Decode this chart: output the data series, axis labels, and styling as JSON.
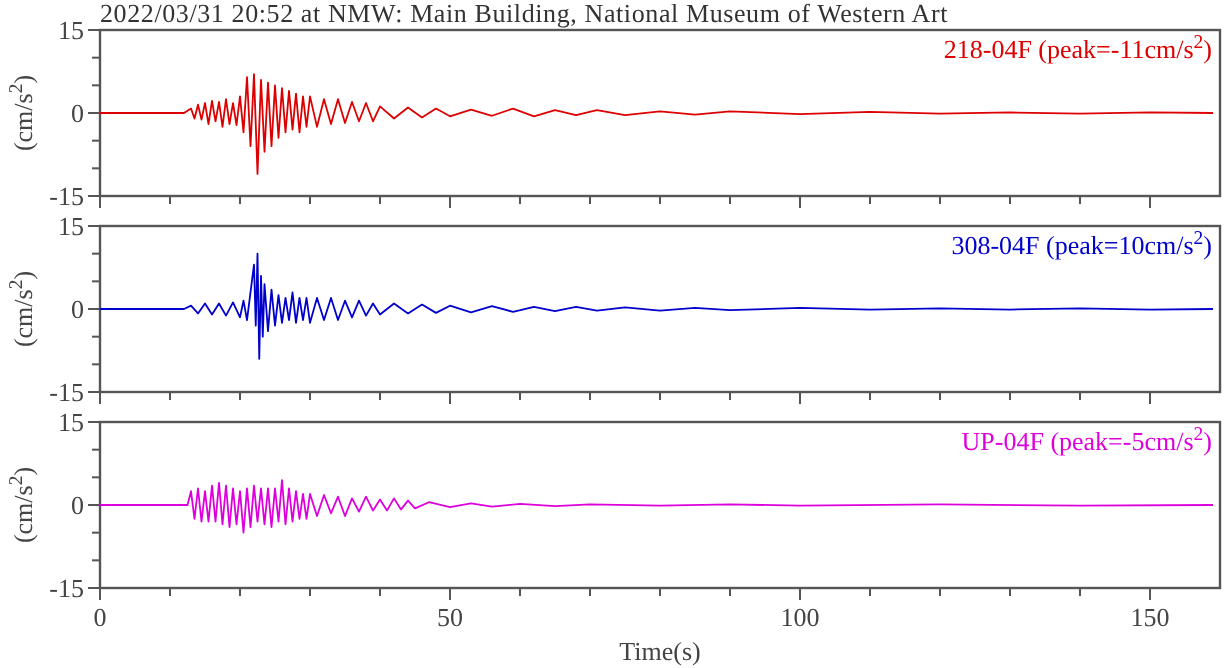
{
  "chart_data": [
    {
      "type": "line",
      "title": "2022/03/31 20:52 at NMW: Main Building, National Museum of Western Art",
      "ylabel": "(cm/s$^{2}$)",
      "tick_labels": "y",
      "legend": "top right",
      "xlim": [
        0,
        160
      ],
      "xticks": [
        0,
        {
          "value": 10,
          "label": null
        },
        {
          "value": 20,
          "label": null
        },
        {
          "value": 30,
          "label": null
        },
        {
          "value": 40,
          "label": null
        },
        50,
        {
          "value": 60,
          "label": null
        },
        {
          "value": 70,
          "label": null
        },
        {
          "value": 80,
          "label": null
        },
        {
          "value": 90,
          "label": null
        },
        100,
        {
          "value": 110,
          "label": null
        },
        {
          "value": 120,
          "label": null
        },
        {
          "value": 130,
          "label": null
        },
        {
          "value": 140,
          "label": null
        },
        150
      ],
      "ylim": [
        -15,
        15
      ],
      "yticks": [
        -15,
        {
          "value": -10,
          "label": null
        },
        {
          "value": -5,
          "label": null
        },
        0,
        {
          "value": 5,
          "label": null
        },
        {
          "value": 10,
          "label": null
        },
        15
      ],
      "series": [
        {
          "name": "218-04F (peak=-11cm/s$^{2}$)",
          "color": "#dd0000",
          "x": [
            0,
            12,
            13,
            13.5,
            14,
            14.5,
            15,
            15.5,
            16,
            16.5,
            17,
            17.5,
            18,
            18.5,
            19,
            19.5,
            20,
            20.5,
            21,
            21.5,
            22,
            22.5,
            23,
            23.5,
            24,
            24.5,
            25,
            25.5,
            26,
            26.5,
            27,
            27.5,
            28,
            28.5,
            29,
            29.5,
            30,
            31,
            32,
            33,
            34,
            35,
            36,
            37,
            38,
            39,
            40,
            42,
            44,
            46,
            48,
            50,
            53,
            56,
            59,
            62,
            65,
            68,
            71,
            75,
            80,
            85,
            90,
            100,
            110,
            120,
            130,
            140,
            150,
            159
          ],
          "values": [
            0,
            0,
            0.8,
            -1,
            1.5,
            -1.2,
            1.8,
            -2,
            2.2,
            -1.5,
            2,
            -2.5,
            2.5,
            -2,
            1.8,
            -2.2,
            3,
            -3.5,
            6.5,
            -6,
            7,
            -11,
            6,
            -7,
            5.5,
            -6,
            5,
            -4.5,
            4.5,
            -3.5,
            4,
            -3,
            3.5,
            -3.5,
            3,
            -2.5,
            3,
            -2.5,
            2.5,
            -2,
            2.5,
            -1.8,
            2,
            -1.5,
            1.8,
            -1.5,
            1.2,
            -1,
            1,
            -0.8,
            0.8,
            -0.6,
            0.6,
            -0.5,
            0.8,
            -0.6,
            0.5,
            -0.4,
            0.5,
            -0.4,
            0.3,
            -0.3,
            0.3,
            -0.2,
            0.2,
            -0.1,
            0.1,
            -0.1,
            0.1,
            0
          ]
        }
      ]
    },
    {
      "type": "line",
      "ylabel": "(cm/s$^{2}$)",
      "tick_labels": "y",
      "legend": "top right",
      "xlim": [
        0,
        160
      ],
      "xticks": [
        0,
        {
          "value": 10,
          "label": null
        },
        {
          "value": 20,
          "label": null
        },
        {
          "value": 30,
          "label": null
        },
        {
          "value": 40,
          "label": null
        },
        50,
        {
          "value": 60,
          "label": null
        },
        {
          "value": 70,
          "label": null
        },
        {
          "value": 80,
          "label": null
        },
        {
          "value": 90,
          "label": null
        },
        100,
        {
          "value": 110,
          "label": null
        },
        {
          "value": 120,
          "label": null
        },
        {
          "value": 130,
          "label": null
        },
        {
          "value": 140,
          "label": null
        },
        150
      ],
      "ylim": [
        -15,
        15
      ],
      "yticks": [
        -15,
        {
          "value": -10,
          "label": null
        },
        {
          "value": -5,
          "label": null
        },
        0,
        {
          "value": 5,
          "label": null
        },
        {
          "value": 10,
          "label": null
        },
        15
      ],
      "series": [
        {
          "name": "308-04F (peak=10cm/s$^{2}$)",
          "color": "#0000cc",
          "x": [
            0,
            12,
            13,
            14,
            15,
            16,
            17,
            18,
            19,
            20,
            20.5,
            21,
            21.5,
            22,
            22.25,
            22.5,
            22.75,
            23,
            23.25,
            23.5,
            24,
            24.5,
            25,
            25.5,
            26,
            26.5,
            27,
            27.5,
            28,
            28.5,
            29,
            29.5,
            30,
            31,
            32,
            33,
            34,
            35,
            36,
            37,
            38,
            39,
            40,
            42,
            44,
            46,
            48,
            50,
            53,
            56,
            59,
            62,
            65,
            68,
            71,
            75,
            80,
            85,
            90,
            100,
            110,
            120,
            130,
            140,
            150,
            159
          ],
          "values": [
            0,
            0,
            0.6,
            -0.8,
            1,
            -1,
            1,
            -1.2,
            1.2,
            -1.5,
            1.5,
            -2,
            3,
            8,
            -3,
            10,
            -9,
            6,
            -5,
            4.5,
            -4,
            3.5,
            -3,
            2.5,
            -2.5,
            2,
            -2,
            3,
            -2.5,
            2,
            -2,
            2,
            -2.5,
            2,
            -2,
            2,
            -2,
            1.5,
            -1.5,
            1.5,
            -1.2,
            1,
            -1,
            1,
            -0.8,
            0.8,
            -0.7,
            0.6,
            -0.6,
            0.5,
            -0.5,
            0.4,
            -0.4,
            0.4,
            -0.3,
            0.3,
            -0.3,
            0.2,
            -0.2,
            0.2,
            -0.1,
            0.1,
            -0.1,
            0.1,
            -0.1,
            0
          ]
        }
      ]
    },
    {
      "type": "line",
      "ylabel": "(cm/s$^{2}$)",
      "xlabel": "Time(s)",
      "legend": "top right",
      "xlim": [
        0,
        160
      ],
      "xticks": [
        0,
        {
          "value": 10,
          "label": null
        },
        {
          "value": 20,
          "label": null
        },
        {
          "value": 30,
          "label": null
        },
        {
          "value": 40,
          "label": null
        },
        50,
        {
          "value": 60,
          "label": null
        },
        {
          "value": 70,
          "label": null
        },
        {
          "value": 80,
          "label": null
        },
        {
          "value": 90,
          "label": null
        },
        100,
        {
          "value": 110,
          "label": null
        },
        {
          "value": 120,
          "label": null
        },
        {
          "value": 130,
          "label": null
        },
        {
          "value": 140,
          "label": null
        },
        150
      ],
      "ylim": [
        -15,
        15
      ],
      "yticks": [
        -15,
        {
          "value": -10,
          "label": null
        },
        {
          "value": -5,
          "label": null
        },
        0,
        {
          "value": 5,
          "label": null
        },
        {
          "value": 10,
          "label": null
        },
        15
      ],
      "series": [
        {
          "name": "UP-04F (peak=-5cm/s$^{2}$)",
          "color": "#dd00dd",
          "x": [
            0,
            12.5,
            13,
            13.5,
            14,
            14.5,
            15,
            15.5,
            16,
            16.5,
            17,
            17.5,
            18,
            18.5,
            19,
            19.5,
            20,
            20.5,
            21,
            21.5,
            22,
            22.5,
            23,
            23.5,
            24,
            24.5,
            25,
            25.5,
            26,
            26.5,
            27,
            27.5,
            28,
            28.5,
            29,
            29.5,
            30,
            31,
            32,
            33,
            34,
            35,
            36,
            37,
            38,
            39,
            40,
            41,
            42,
            43,
            44,
            45,
            47,
            50,
            53,
            56,
            60,
            65,
            70,
            80,
            90,
            100,
            120,
            140,
            159
          ],
          "values": [
            0,
            0,
            2.5,
            -2.5,
            3,
            -3,
            2.5,
            -3,
            3.5,
            -3,
            4,
            -3.5,
            3.5,
            -4,
            3,
            -3.5,
            2.5,
            -5,
            3,
            -4,
            3.5,
            -3,
            3,
            -3.5,
            3,
            -4,
            3,
            -3,
            4.5,
            -3.5,
            3,
            -3,
            2.5,
            -2.5,
            2,
            -2.5,
            2,
            -2,
            1.8,
            -1.5,
            1.5,
            -2,
            1.2,
            -1.2,
            1.5,
            -1,
            1,
            -1,
            1.2,
            -0.8,
            0.8,
            -0.6,
            0.5,
            -0.4,
            0.3,
            -0.3,
            0.2,
            -0.2,
            0.1,
            -0.1,
            0.1,
            -0.1,
            0.1,
            -0.1,
            0
          ]
        }
      ]
    }
  ]
}
